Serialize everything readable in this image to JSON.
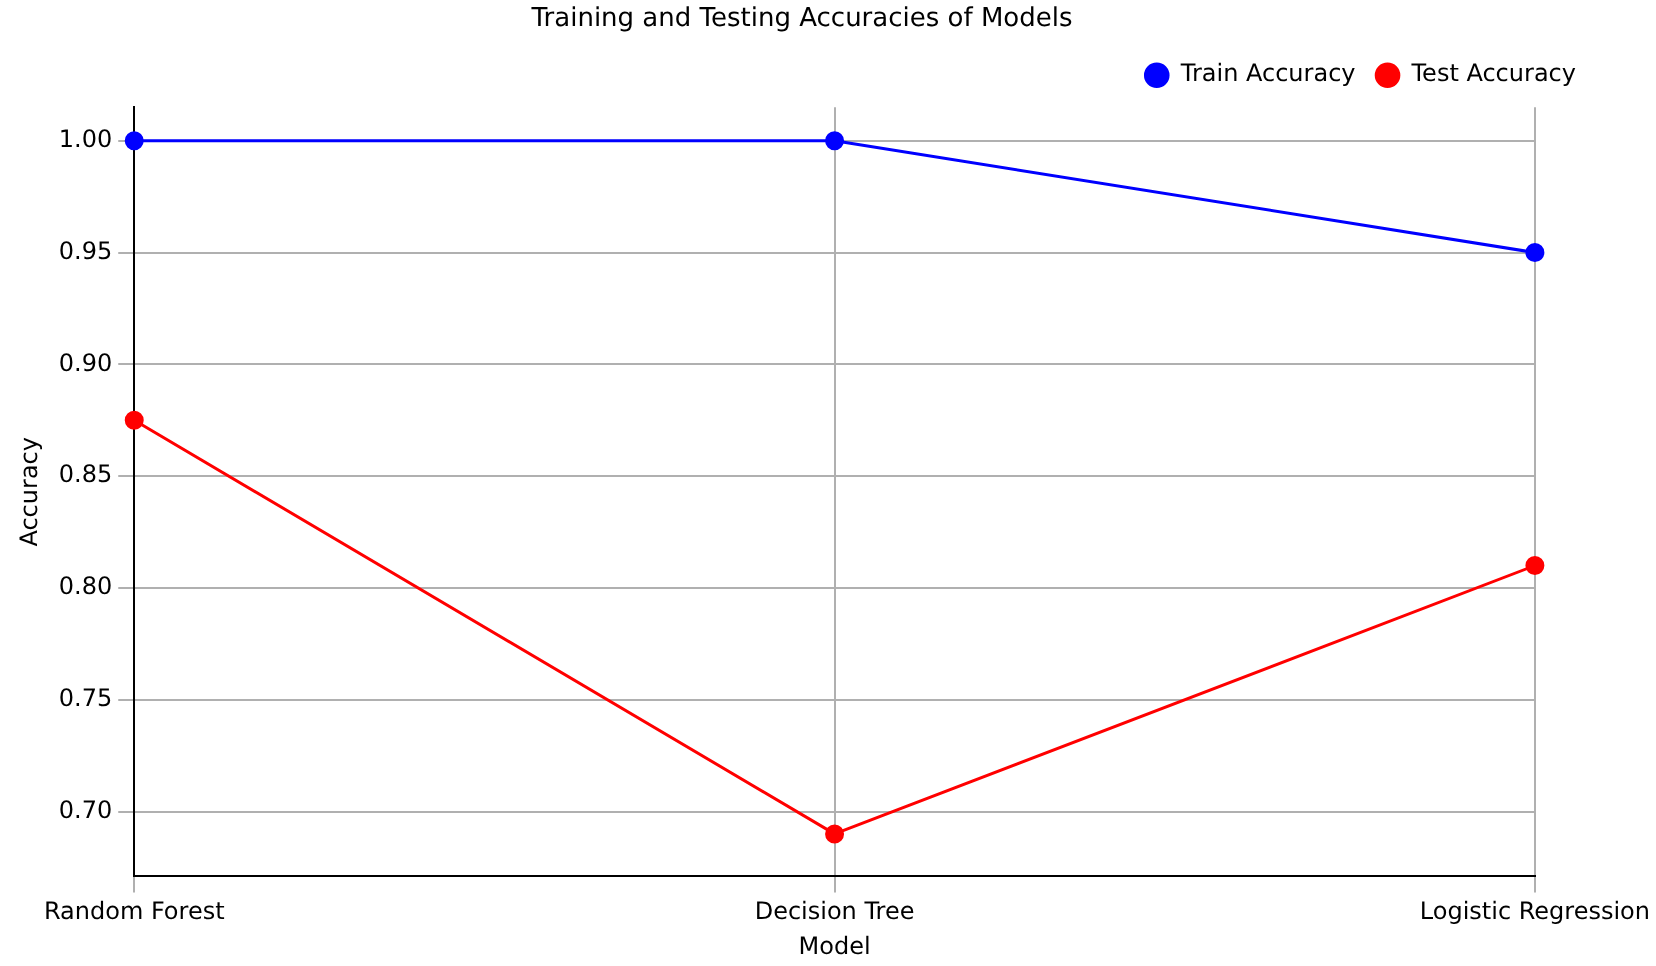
{
  "chart_data": {
    "type": "line",
    "title": "Training and Testing Accuracies of Models",
    "xlabel": "Model",
    "ylabel": "Accuracy",
    "categories": [
      "Random Forest",
      "Decision Tree",
      "Logistic Regression"
    ],
    "series": [
      {
        "name": "Train Accuracy",
        "color": "#0000ff",
        "values": [
          1.0,
          1.0,
          0.95
        ]
      },
      {
        "name": "Test Accuracy",
        "color": "#ff0000",
        "values": [
          0.875,
          0.69,
          0.81
        ]
      }
    ],
    "ylim": [
      0.671,
      1.015
    ],
    "yticks": [
      {
        "value": 0.7,
        "label": "0.70"
      },
      0.75,
      {
        "value": 0.8,
        "label": "0.80"
      },
      0.85,
      {
        "value": 0.9,
        "label": "0.90"
      },
      0.95,
      {
        "value": 1,
        "label": "1.00"
      }
    ],
    "grid": true,
    "legend": "top right",
    "marker": "circle",
    "line_style": "solid"
  }
}
